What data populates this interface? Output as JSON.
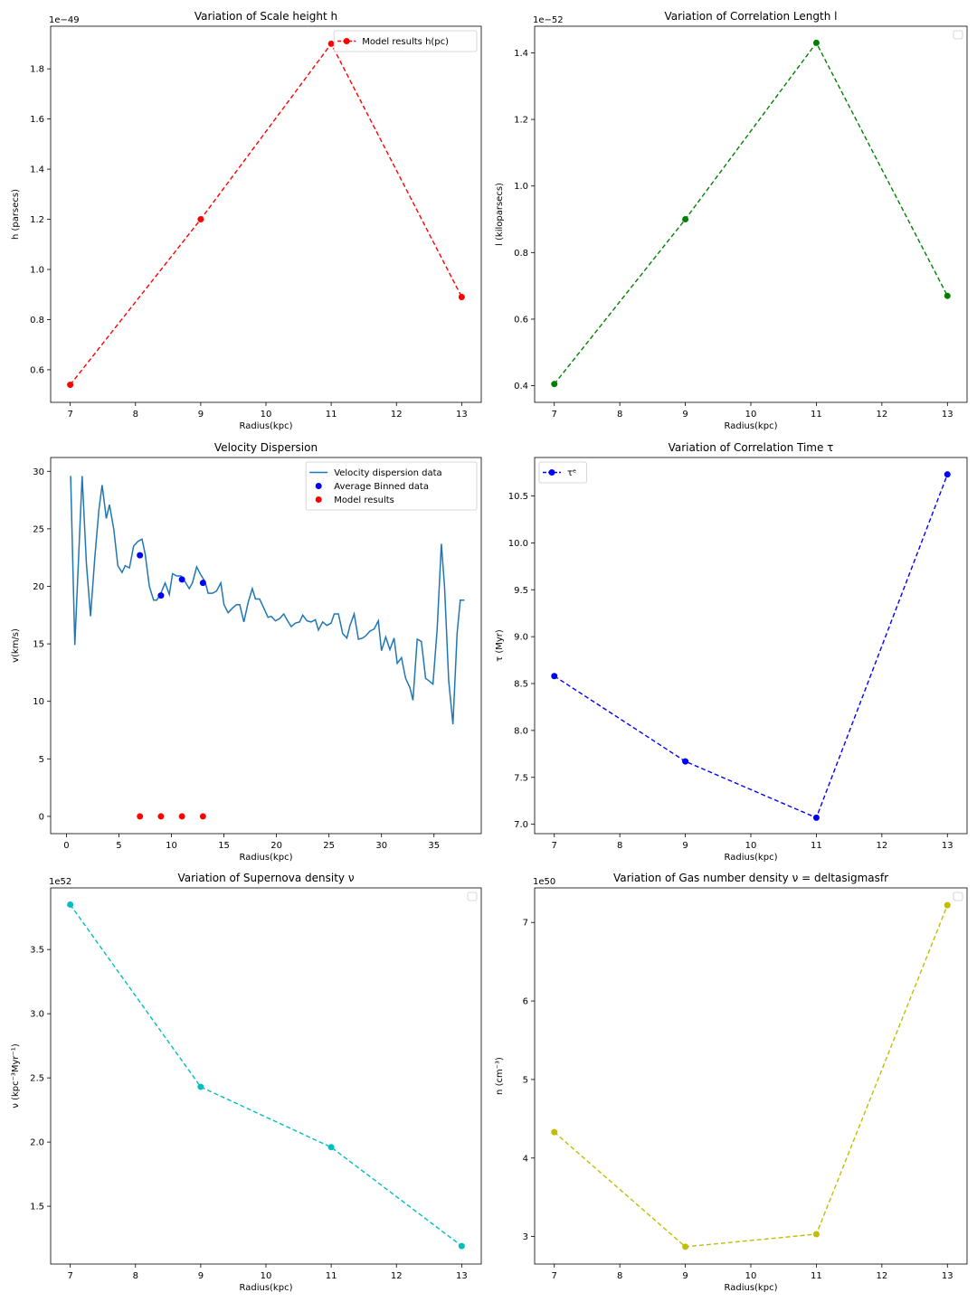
{
  "chart_data": [
    {
      "type": "line",
      "title": "Variation of Scale height h",
      "xlabel": "Radius(kpc)",
      "ylabel": "h (parsecs)",
      "offset_text": "1e−49",
      "xlim": [
        6.7,
        13.3
      ],
      "ylim": [
        0.47,
        1.97
      ],
      "xticks": [
        7,
        8,
        9,
        10,
        11,
        12,
        13
      ],
      "yticks": [
        0.6,
        0.8,
        1.0,
        1.2,
        1.4,
        1.6,
        1.8
      ],
      "legend": {
        "position": "top-right",
        "entries": [
          {
            "label": "Model results h(pc)",
            "series": 0
          }
        ]
      },
      "series": [
        {
          "name": "Model results h(pc)",
          "style": "dashed-marker",
          "color": "#ff0000",
          "x": [
            7,
            9,
            11,
            13
          ],
          "y": [
            0.54,
            1.2,
            1.9,
            0.89
          ]
        }
      ]
    },
    {
      "type": "line",
      "title": "Variation of Correlation Length l",
      "xlabel": "Radius(kpc)",
      "ylabel": "l (kiloparsecs)",
      "offset_text": "1e−52",
      "xlim": [
        6.7,
        13.3
      ],
      "ylim": [
        0.35,
        1.48
      ],
      "xticks": [
        7,
        8,
        9,
        10,
        11,
        12,
        13
      ],
      "yticks": [
        0.4,
        0.6,
        0.8,
        1.0,
        1.2,
        1.4
      ],
      "legend": {
        "position": "top-right",
        "entries": []
      },
      "series": [
        {
          "style": "dashed-marker",
          "color": "#008000",
          "x": [
            7,
            9,
            11,
            13
          ],
          "y": [
            0.405,
            0.9,
            1.43,
            0.67
          ]
        }
      ]
    },
    {
      "type": "line",
      "title": "Velocity Dispersion",
      "xlabel": "Radius(kpc)",
      "ylabel": "v(km/s)",
      "offset_text": "",
      "xlim": [
        -1.5,
        39.5
      ],
      "ylim": [
        -1.5,
        31.2
      ],
      "xticks": [
        0,
        5,
        10,
        15,
        20,
        25,
        30,
        35
      ],
      "yticks": [
        0,
        5,
        10,
        15,
        20,
        25,
        30
      ],
      "legend": {
        "position": "top-right",
        "entries": [
          {
            "label": "Velocity dispersion data",
            "series": 0
          },
          {
            "label": "Average Binned data",
            "series": 1
          },
          {
            "label": "Model results",
            "series": 2
          }
        ]
      },
      "series": [
        {
          "name": "Velocity dispersion data",
          "style": "line",
          "color": "#1f77b4",
          "x": [
            0.4,
            0.8,
            1.5,
            1.9,
            2.3,
            2.7,
            3.1,
            3.4,
            3.8,
            4.1,
            4.5,
            4.9,
            5.3,
            5.6,
            6.0,
            6.4,
            6.8,
            7.2,
            7.5,
            7.9,
            8.3,
            8.6,
            9.0,
            9.4,
            9.8,
            10.1,
            10.5,
            10.9,
            11.3,
            11.7,
            12.0,
            12.4,
            12.8,
            13.2,
            13.5,
            13.9,
            14.3,
            14.7,
            15.0,
            15.4,
            15.8,
            16.2,
            16.5,
            16.9,
            17.3,
            17.7,
            18.0,
            18.4,
            18.8,
            19.2,
            19.5,
            19.9,
            20.3,
            20.7,
            21.0,
            21.4,
            21.8,
            22.2,
            22.5,
            22.9,
            23.3,
            23.7,
            24.0,
            24.4,
            24.8,
            25.2,
            25.5,
            25.9,
            26.3,
            26.7,
            27.0,
            27.4,
            27.8,
            28.2,
            28.5,
            28.9,
            29.3,
            29.7,
            30.0,
            30.4,
            30.8,
            31.2,
            31.5,
            31.9,
            32.3,
            32.7,
            33.0,
            33.4,
            33.8,
            34.2,
            34.5,
            34.9,
            35.3,
            35.7,
            36.0,
            36.4,
            36.8,
            37.2,
            37.5,
            37.9
          ],
          "y": [
            29.6,
            14.9,
            29.6,
            22.0,
            17.4,
            22.5,
            26.7,
            28.8,
            25.9,
            27.1,
            25.0,
            21.8,
            21.2,
            21.8,
            21.6,
            23.5,
            23.9,
            24.1,
            22.8,
            20.0,
            18.8,
            18.8,
            19.4,
            20.3,
            19.3,
            21.1,
            20.9,
            20.9,
            20.4,
            19.8,
            20.3,
            21.7,
            21.0,
            20.4,
            19.4,
            19.4,
            19.6,
            20.3,
            18.4,
            17.7,
            18.1,
            18.4,
            18.4,
            16.9,
            18.6,
            19.8,
            18.9,
            18.9,
            18.1,
            17.3,
            17.4,
            17.0,
            17.2,
            17.6,
            17.1,
            16.5,
            16.8,
            16.9,
            17.5,
            17.0,
            16.9,
            17.1,
            16.2,
            16.9,
            16.6,
            16.8,
            17.6,
            17.6,
            15.9,
            15.5,
            16.6,
            17.6,
            15.4,
            15.5,
            15.7,
            16.1,
            16.3,
            17.0,
            14.4,
            15.6,
            14.5,
            15.5,
            13.3,
            13.8,
            12.0,
            11.2,
            10.1,
            15.4,
            15.2,
            12.0,
            11.8,
            11.5,
            16.2,
            23.7,
            20.0,
            11.8,
            8.0,
            15.9,
            18.8,
            18.8
          ]
        },
        {
          "name": "Average Binned data",
          "style": "scatter",
          "color": "#0000ff",
          "x": [
            7,
            9,
            11,
            13
          ],
          "y": [
            22.7,
            19.2,
            20.6,
            20.3
          ]
        },
        {
          "name": "Model results",
          "style": "scatter",
          "color": "#ff0000",
          "x": [
            7,
            9,
            11,
            13
          ],
          "y": [
            0,
            0,
            0,
            0
          ]
        }
      ]
    },
    {
      "type": "line",
      "title": "Variation of Correlation Time τ",
      "xlabel": "Radius(kpc)",
      "ylabel": "τ (Myr)",
      "offset_text": "",
      "xlim": [
        6.7,
        13.3
      ],
      "ylim": [
        6.9,
        10.91
      ],
      "xticks": [
        7,
        8,
        9,
        10,
        11,
        12,
        13
      ],
      "yticks": [
        7.0,
        7.5,
        8.0,
        8.5,
        9.0,
        9.5,
        10.0,
        10.5
      ],
      "legend": {
        "position": "top-left",
        "entries": [
          {
            "label": "τᵉ",
            "series": 0
          }
        ]
      },
      "series": [
        {
          "name": "τᵉ",
          "style": "dashed-marker",
          "color": "#0000ff",
          "x": [
            7,
            9,
            11,
            13
          ],
          "y": [
            8.58,
            7.67,
            7.07,
            10.73
          ]
        }
      ]
    },
    {
      "type": "line",
      "title": "Variation of Supernova density ν",
      "xlabel": "Radius(kpc)",
      "ylabel": "ν (kpc⁻³Myr⁻¹)",
      "offset_text": "1e52",
      "xlim": [
        6.7,
        13.3
      ],
      "ylim": [
        1.05,
        3.98
      ],
      "xticks": [
        7,
        8,
        9,
        10,
        11,
        12,
        13
      ],
      "yticks": [
        1.5,
        2.0,
        2.5,
        3.0,
        3.5
      ],
      "legend": {
        "position": "top-right",
        "entries": []
      },
      "series": [
        {
          "style": "dashed-marker",
          "color": "#00bfbf",
          "x": [
            7,
            9,
            11,
            13
          ],
          "y": [
            3.85,
            2.43,
            1.96,
            1.19
          ]
        }
      ]
    },
    {
      "type": "line",
      "title": "Variation of Gas number density ν = deltasigmasfr",
      "xlabel": "Radius(kpc)",
      "ylabel": "n (cm⁻³)",
      "offset_text": "1e50",
      "xlim": [
        6.7,
        13.3
      ],
      "ylim": [
        2.65,
        7.44
      ],
      "xticks": [
        7,
        8,
        9,
        10,
        11,
        12,
        13
      ],
      "yticks": [
        3,
        4,
        5,
        6,
        7
      ],
      "legend": {
        "position": "top-right",
        "entries": []
      },
      "series": [
        {
          "style": "dashed-marker",
          "color": "#bfbf00",
          "x": [
            7,
            9,
            11,
            13
          ],
          "y": [
            4.33,
            2.87,
            3.03,
            7.22
          ]
        }
      ]
    }
  ]
}
